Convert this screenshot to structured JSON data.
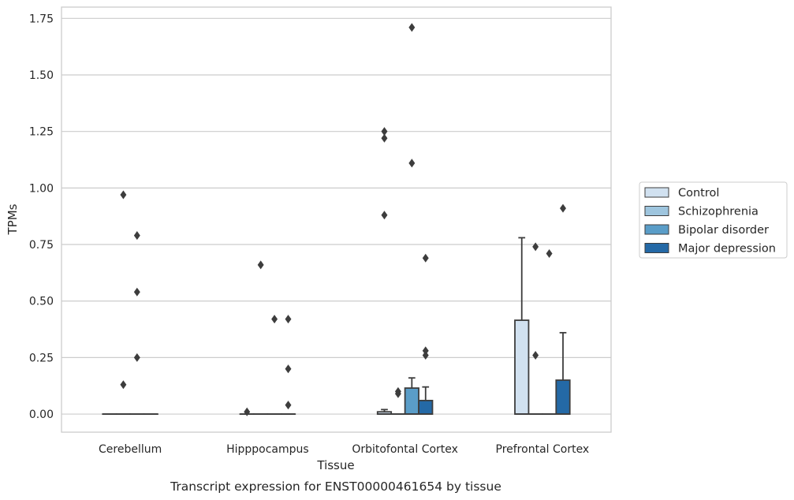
{
  "chart_data": {
    "type": "box",
    "xlabel": "Tissue",
    "ylabel": "TPMs",
    "caption": "Transcript expression for ENST00000461654 by tissue",
    "categories": [
      "Cerebellum",
      "Hipppocampus",
      "Orbitofontal Cortex",
      "Prefrontal Cortex"
    ],
    "ylim": [
      -0.08,
      1.8
    ],
    "yticks": [
      0.0,
      0.25,
      0.5,
      0.75,
      1.0,
      1.25,
      1.5,
      1.75
    ],
    "ytick_labels": [
      "0.00",
      "0.25",
      "0.50",
      "0.75",
      "1.00",
      "1.25",
      "1.50",
      "1.75"
    ],
    "grid": "horizontal",
    "legend_position": "right",
    "series": [
      {
        "name": "Control",
        "color": "#d1e1f0",
        "boxes": [
          {
            "q1": 0,
            "median": 0,
            "q3": 0,
            "whisker_low": 0,
            "whisker_high": 0,
            "outliers": []
          },
          {
            "q1": 0,
            "median": 0,
            "q3": 0,
            "whisker_low": 0,
            "whisker_high": 0,
            "outliers": [
              0.01
            ]
          },
          {
            "q1": 0,
            "median": 0,
            "q3": 0.01,
            "whisker_low": 0,
            "whisker_high": 0.02,
            "outliers": [
              1.25,
              1.22,
              0.88
            ]
          },
          {
            "q1": 0,
            "median": 0,
            "q3": 0.415,
            "whisker_low": 0,
            "whisker_high": 0.78,
            "outliers": []
          }
        ]
      },
      {
        "name": "Schizophrenia",
        "color": "#9ec5de",
        "boxes": [
          {
            "q1": 0,
            "median": 0,
            "q3": 0,
            "whisker_low": 0,
            "whisker_high": 0,
            "outliers": [
              0.97,
              0.13
            ]
          },
          {
            "q1": 0,
            "median": 0,
            "q3": 0,
            "whisker_low": 0,
            "whisker_high": 0,
            "outliers": [
              0.66
            ]
          },
          {
            "q1": 0,
            "median": 0,
            "q3": 0,
            "whisker_low": 0,
            "whisker_high": 0,
            "outliers": [
              0.1,
              0.09
            ]
          },
          {
            "q1": 0,
            "median": 0,
            "q3": 0,
            "whisker_low": 0,
            "whisker_high": 0,
            "outliers": [
              0.74,
              0.26
            ]
          }
        ]
      },
      {
        "name": "Bipolar disorder",
        "color": "#5a9dc8",
        "boxes": [
          {
            "q1": 0,
            "median": 0,
            "q3": 0,
            "whisker_low": 0,
            "whisker_high": 0,
            "outliers": [
              0.79,
              0.54,
              0.25
            ]
          },
          {
            "q1": 0,
            "median": 0,
            "q3": 0,
            "whisker_low": 0,
            "whisker_high": 0,
            "outliers": [
              0.42
            ]
          },
          {
            "q1": 0,
            "median": 0,
            "q3": 0.115,
            "whisker_low": 0,
            "whisker_high": 0.16,
            "outliers": [
              1.71,
              1.11
            ]
          },
          {
            "q1": 0,
            "median": 0,
            "q3": 0,
            "whisker_low": 0,
            "whisker_high": 0,
            "outliers": [
              0.71
            ]
          }
        ]
      },
      {
        "name": "Major depression",
        "color": "#2469a6",
        "boxes": [
          {
            "q1": 0,
            "median": 0,
            "q3": 0,
            "whisker_low": 0,
            "whisker_high": 0,
            "outliers": []
          },
          {
            "q1": 0,
            "median": 0,
            "q3": 0,
            "whisker_low": 0,
            "whisker_high": 0,
            "outliers": [
              0.42,
              0.2,
              0.04
            ]
          },
          {
            "q1": 0,
            "median": 0,
            "q3": 0.06,
            "whisker_low": 0,
            "whisker_high": 0.12,
            "outliers": [
              0.69,
              0.28,
              0.26
            ]
          },
          {
            "q1": 0,
            "median": 0,
            "q3": 0.15,
            "whisker_low": 0,
            "whisker_high": 0.36,
            "outliers": [
              0.91
            ]
          }
        ]
      }
    ]
  }
}
